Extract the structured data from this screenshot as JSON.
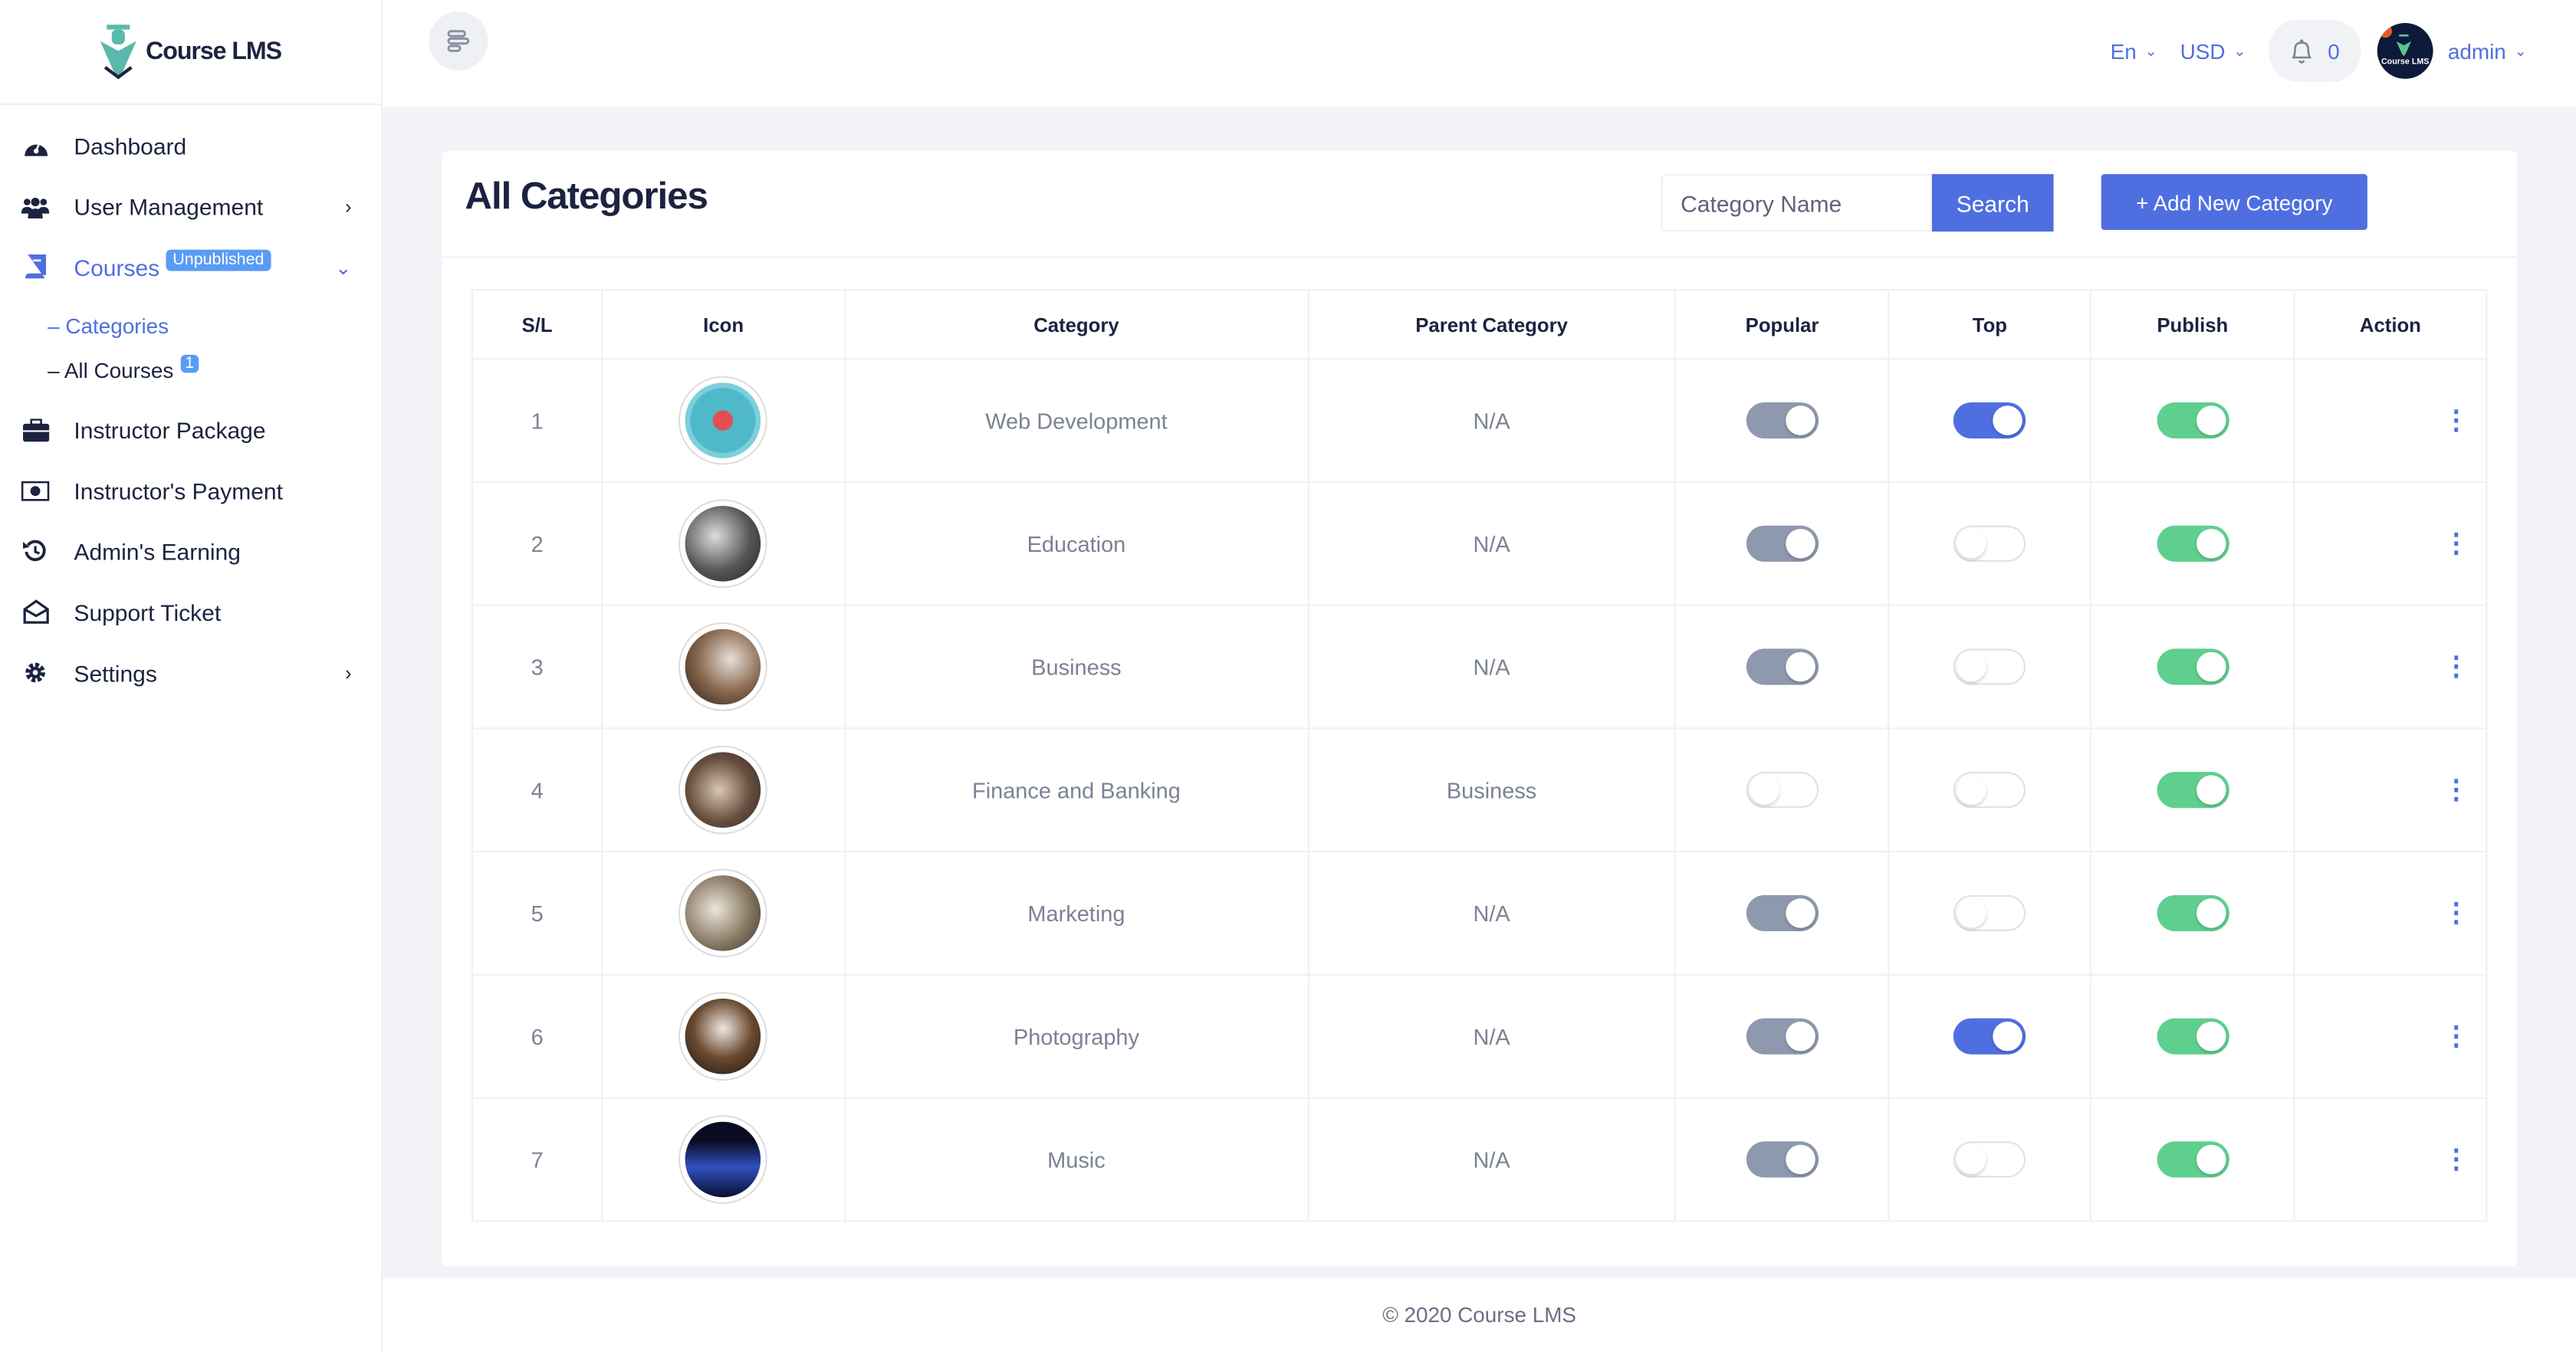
{
  "app": {
    "logo_text": "Course LMS"
  },
  "sidebar": {
    "items": [
      {
        "label": "Dashboard",
        "icon": "dashboard-icon"
      },
      {
        "label": "User Management",
        "icon": "users-icon",
        "chevron": "right"
      },
      {
        "label": "Courses",
        "icon": "book-icon",
        "badge": "Unpublished",
        "chevron": "down",
        "active": true
      },
      {
        "label": "Instructor Package",
        "icon": "briefcase-icon"
      },
      {
        "label": "Instructor's Payment",
        "icon": "money-icon"
      },
      {
        "label": "Admin's Earning",
        "icon": "history-icon"
      },
      {
        "label": "Support Ticket",
        "icon": "envelope-open-icon"
      },
      {
        "label": "Settings",
        "icon": "gear-icon",
        "chevron": "right"
      }
    ],
    "sub_items": [
      {
        "label": "– Categories",
        "active": true
      },
      {
        "label": "– All Courses",
        "badge": "1"
      }
    ]
  },
  "header": {
    "language": "En",
    "currency": "USD",
    "notifications": "0",
    "user": "admin",
    "avatar_text": "Course LMS"
  },
  "page": {
    "title": "All Categories",
    "search_placeholder": "Category Name",
    "search_label": "Search",
    "add_label": "+ Add New Category"
  },
  "table": {
    "columns": [
      "S/L",
      "Icon",
      "Category",
      "Parent Category",
      "Popular",
      "Top",
      "Publish",
      "Action"
    ],
    "rows": [
      {
        "sl": "1",
        "category": "Web Development",
        "parent": "N/A",
        "popular": true,
        "top": true,
        "publish": true
      },
      {
        "sl": "2",
        "category": "Education",
        "parent": "N/A",
        "popular": true,
        "top": false,
        "publish": true
      },
      {
        "sl": "3",
        "category": "Business",
        "parent": "N/A",
        "popular": true,
        "top": false,
        "publish": true
      },
      {
        "sl": "4",
        "category": "Finance and Banking",
        "parent": "Business",
        "popular": false,
        "top": false,
        "publish": true
      },
      {
        "sl": "5",
        "category": "Marketing",
        "parent": "N/A",
        "popular": true,
        "top": false,
        "publish": true
      },
      {
        "sl": "6",
        "category": "Photography",
        "parent": "N/A",
        "popular": true,
        "top": true,
        "publish": true
      },
      {
        "sl": "7",
        "category": "Music",
        "parent": "N/A",
        "popular": true,
        "top": false,
        "publish": true
      }
    ]
  },
  "colors": {
    "accent": "#4f6fe0",
    "popular_on": "#8e99ad",
    "top_on": "#4f6fe0",
    "publish_on": "#5fcf8f"
  },
  "footer": {
    "text": "© 2020 Course LMS"
  }
}
